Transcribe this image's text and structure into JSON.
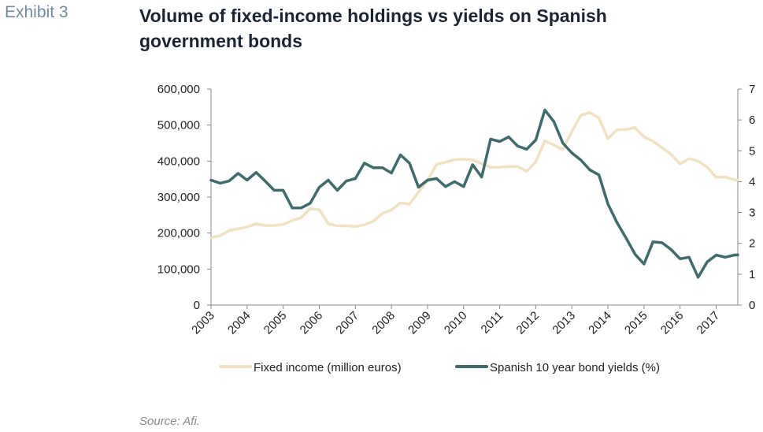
{
  "exhibit_label": "Exhibit 3",
  "title": "Volume of fixed-income holdings vs yields on Spanish government bonds",
  "source": "Source: Afi.",
  "chart_data": {
    "type": "line",
    "title": "Volume of fixed-income holdings vs yields on Spanish government bonds",
    "x_tick_labels": [
      "2003",
      "2004",
      "2005",
      "2006",
      "2007",
      "2008",
      "2009",
      "2010",
      "2011",
      "2012",
      "2013",
      "2014",
      "2015",
      "2016",
      "2017"
    ],
    "xlim": [
      2003,
      2017.6
    ],
    "left_axis": {
      "ylim": [
        0,
        600000
      ],
      "ticks": [
        "0",
        "100,000",
        "200,000",
        "300,000",
        "400,000",
        "500,000",
        "600,000"
      ]
    },
    "right_axis": {
      "ylim": [
        0,
        7
      ],
      "ticks": [
        "0",
        "1",
        "2",
        "3",
        "4",
        "5",
        "6",
        "7"
      ]
    },
    "grid": false,
    "legend_position": "bottom",
    "series": [
      {
        "name": "Fixed income (million euros)",
        "axis": "left",
        "color": "#f0e2c0",
        "points": [
          [
            2003.0,
            187000
          ],
          [
            2003.25,
            193000
          ],
          [
            2003.5,
            207000
          ],
          [
            2003.75,
            212000
          ],
          [
            2004.0,
            217000
          ],
          [
            2004.25,
            226000
          ],
          [
            2004.5,
            221000
          ],
          [
            2004.75,
            221000
          ],
          [
            2005.0,
            224000
          ],
          [
            2005.25,
            235000
          ],
          [
            2005.5,
            243000
          ],
          [
            2005.75,
            268000
          ],
          [
            2006.0,
            265000
          ],
          [
            2006.25,
            226000
          ],
          [
            2006.5,
            220000
          ],
          [
            2006.75,
            220000
          ],
          [
            2007.0,
            218000
          ],
          [
            2007.25,
            223000
          ],
          [
            2007.5,
            233000
          ],
          [
            2007.75,
            255000
          ],
          [
            2008.0,
            264000
          ],
          [
            2008.25,
            284000
          ],
          [
            2008.5,
            280000
          ],
          [
            2008.75,
            314000
          ],
          [
            2009.0,
            346000
          ],
          [
            2009.25,
            391000
          ],
          [
            2009.5,
            397000
          ],
          [
            2009.75,
            404000
          ],
          [
            2010.0,
            405000
          ],
          [
            2010.25,
            403000
          ],
          [
            2010.5,
            393000
          ],
          [
            2010.75,
            383000
          ],
          [
            2011.0,
            383000
          ],
          [
            2011.25,
            385000
          ],
          [
            2011.5,
            385000
          ],
          [
            2011.75,
            371000
          ],
          [
            2012.0,
            398000
          ],
          [
            2012.25,
            456000
          ],
          [
            2012.5,
            445000
          ],
          [
            2012.75,
            432000
          ],
          [
            2013.0,
            482000
          ],
          [
            2013.25,
            527000
          ],
          [
            2013.5,
            535000
          ],
          [
            2013.75,
            520000
          ],
          [
            2014.0,
            462000
          ],
          [
            2014.25,
            487000
          ],
          [
            2014.5,
            488000
          ],
          [
            2014.75,
            493000
          ],
          [
            2015.0,
            467000
          ],
          [
            2015.25,
            455000
          ],
          [
            2015.5,
            437000
          ],
          [
            2015.75,
            419000
          ],
          [
            2016.0,
            392000
          ],
          [
            2016.25,
            407000
          ],
          [
            2016.5,
            400000
          ],
          [
            2016.75,
            383000
          ],
          [
            2017.0,
            355000
          ],
          [
            2017.25,
            356000
          ],
          [
            2017.5,
            348000
          ],
          [
            2017.6,
            347000
          ]
        ]
      },
      {
        "name": "Spanish 10 year bond yields (%)",
        "axis": "right",
        "color": "#3e6b6b",
        "points": [
          [
            2003.0,
            4.05
          ],
          [
            2003.25,
            3.95
          ],
          [
            2003.5,
            4.02
          ],
          [
            2003.75,
            4.27
          ],
          [
            2004.0,
            4.05
          ],
          [
            2004.25,
            4.3
          ],
          [
            2004.5,
            4.02
          ],
          [
            2004.75,
            3.72
          ],
          [
            2005.0,
            3.72
          ],
          [
            2005.25,
            3.15
          ],
          [
            2005.5,
            3.15
          ],
          [
            2005.75,
            3.3
          ],
          [
            2006.0,
            3.82
          ],
          [
            2006.25,
            4.05
          ],
          [
            2006.5,
            3.72
          ],
          [
            2006.75,
            4.02
          ],
          [
            2007.0,
            4.1
          ],
          [
            2007.25,
            4.6
          ],
          [
            2007.5,
            4.45
          ],
          [
            2007.75,
            4.45
          ],
          [
            2008.0,
            4.28
          ],
          [
            2008.25,
            4.87
          ],
          [
            2008.5,
            4.6
          ],
          [
            2008.75,
            3.82
          ],
          [
            2009.0,
            4.05
          ],
          [
            2009.25,
            4.1
          ],
          [
            2009.5,
            3.84
          ],
          [
            2009.75,
            4.0
          ],
          [
            2010.0,
            3.84
          ],
          [
            2010.25,
            4.55
          ],
          [
            2010.5,
            4.15
          ],
          [
            2010.75,
            5.38
          ],
          [
            2011.0,
            5.3
          ],
          [
            2011.25,
            5.45
          ],
          [
            2011.5,
            5.15
          ],
          [
            2011.75,
            5.05
          ],
          [
            2012.0,
            5.35
          ],
          [
            2012.25,
            6.32
          ],
          [
            2012.5,
            5.95
          ],
          [
            2012.75,
            5.25
          ],
          [
            2013.0,
            4.93
          ],
          [
            2013.25,
            4.7
          ],
          [
            2013.5,
            4.38
          ],
          [
            2013.75,
            4.22
          ],
          [
            2014.0,
            3.28
          ],
          [
            2014.25,
            2.68
          ],
          [
            2014.5,
            2.18
          ],
          [
            2014.75,
            1.65
          ],
          [
            2015.0,
            1.33
          ],
          [
            2015.25,
            2.05
          ],
          [
            2015.5,
            2.02
          ],
          [
            2015.75,
            1.8
          ],
          [
            2016.0,
            1.5
          ],
          [
            2016.25,
            1.55
          ],
          [
            2016.5,
            0.9
          ],
          [
            2016.75,
            1.4
          ],
          [
            2017.0,
            1.62
          ],
          [
            2017.25,
            1.55
          ],
          [
            2017.5,
            1.62
          ],
          [
            2017.6,
            1.63
          ]
        ]
      }
    ]
  }
}
